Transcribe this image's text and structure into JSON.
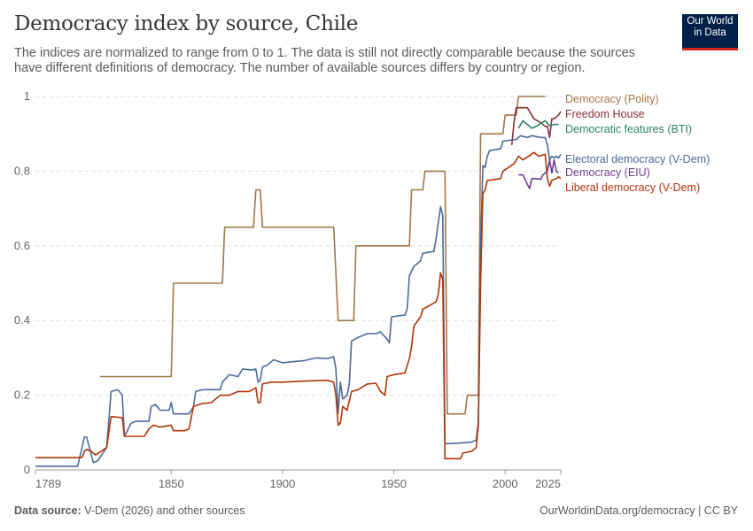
{
  "header": {
    "title": "Democracy index by source, Chile",
    "subtitle": "The indices are normalized to range from 0 to 1. The data is still not directly comparable because the sources have different definitions of democracy. The number of available sources differs by country or region.",
    "logo_line1": "Our World",
    "logo_line2": "in Data"
  },
  "footer": {
    "source_label": "Data source:",
    "source_text": "V-Dem (2026) and other sources",
    "url": "OurWorldinData.org/democracy | CC BY"
  },
  "chart_data": {
    "type": "line",
    "title": "Democracy index by source, Chile",
    "xlabel": "",
    "ylabel": "",
    "xlim": [
      1789,
      2025
    ],
    "ylim": [
      0,
      1
    ],
    "x_ticks": [
      "1789",
      "1850",
      "1900",
      "1950",
      "2000",
      "2025"
    ],
    "y_ticks": [
      "0",
      "0.2",
      "0.4",
      "0.6",
      "0.8",
      "1"
    ],
    "grid": "horizontal dashed",
    "legend": "right, inline labels",
    "series": [
      {
        "name": "Democracy (Polity)",
        "color": "#a2774b",
        "step": true,
        "points": [
          [
            1818,
            0.25
          ],
          [
            1850,
            0.25
          ],
          [
            1851,
            0.5
          ],
          [
            1873,
            0.5
          ],
          [
            1874,
            0.65
          ],
          [
            1887,
            0.65
          ],
          [
            1888,
            0.75
          ],
          [
            1890,
            0.75
          ],
          [
            1891,
            0.65
          ],
          [
            1923,
            0.65
          ],
          [
            1925,
            0.4
          ],
          [
            1932,
            0.4
          ],
          [
            1933,
            0.6
          ],
          [
            1957,
            0.6
          ],
          [
            1958,
            0.75
          ],
          [
            1963,
            0.75
          ],
          [
            1964,
            0.8
          ],
          [
            1973,
            0.8
          ],
          [
            1974,
            0.15
          ],
          [
            1982,
            0.15
          ],
          [
            1983,
            0.2
          ],
          [
            1988,
            0.2
          ],
          [
            1989,
            0.9
          ],
          [
            1999,
            0.9
          ],
          [
            2000,
            0.95
          ],
          [
            2005,
            0.95
          ],
          [
            2006,
            1
          ],
          [
            2018,
            1
          ]
        ]
      },
      {
        "name": "Freedom House",
        "color": "#883039",
        "points": [
          [
            2003,
            0.87
          ],
          [
            2004,
            0.93
          ],
          [
            2005,
            0.97
          ],
          [
            2010,
            0.97
          ],
          [
            2013,
            0.94
          ],
          [
            2016,
            0.93
          ],
          [
            2018,
            0.92
          ],
          [
            2019,
            0.92
          ],
          [
            2020,
            0.89
          ],
          [
            2021,
            0.94
          ],
          [
            2022,
            0.94
          ],
          [
            2024,
            0.95
          ],
          [
            2025,
            0.96
          ]
        ]
      },
      {
        "name": "Democratic features (BTI)",
        "color": "#2c8465",
        "points": [
          [
            2006,
            0.915
          ],
          [
            2008,
            0.935
          ],
          [
            2010,
            0.925
          ],
          [
            2012,
            0.915
          ],
          [
            2014,
            0.92
          ],
          [
            2016,
            0.928
          ],
          [
            2018,
            0.935
          ],
          [
            2020,
            0.922
          ],
          [
            2022,
            0.925
          ],
          [
            2024,
            0.925
          ]
        ]
      },
      {
        "name": "Electoral democracy (V-Dem)",
        "color": "#4c6a9c",
        "points": [
          [
            1789,
            0.01
          ],
          [
            1808,
            0.01
          ],
          [
            1811,
            0.088
          ],
          [
            1812,
            0.088
          ],
          [
            1815,
            0.02
          ],
          [
            1817,
            0.025
          ],
          [
            1821,
            0.06
          ],
          [
            1823,
            0.21
          ],
          [
            1826,
            0.215
          ],
          [
            1828,
            0.2
          ],
          [
            1829,
            0.09
          ],
          [
            1832,
            0.125
          ],
          [
            1834,
            0.13
          ],
          [
            1840,
            0.13
          ],
          [
            1841,
            0.17
          ],
          [
            1843,
            0.175
          ],
          [
            1845,
            0.16
          ],
          [
            1849,
            0.16
          ],
          [
            1850,
            0.18
          ],
          [
            1851,
            0.15
          ],
          [
            1858,
            0.15
          ],
          [
            1860,
            0.17
          ],
          [
            1861,
            0.21
          ],
          [
            1864,
            0.215
          ],
          [
            1872,
            0.215
          ],
          [
            1873,
            0.235
          ],
          [
            1876,
            0.255
          ],
          [
            1880,
            0.25
          ],
          [
            1882,
            0.27
          ],
          [
            1886,
            0.268
          ],
          [
            1888,
            0.27
          ],
          [
            1889,
            0.235
          ],
          [
            1890,
            0.24
          ],
          [
            1891,
            0.275
          ],
          [
            1893,
            0.28
          ],
          [
            1896,
            0.295
          ],
          [
            1900,
            0.287
          ],
          [
            1905,
            0.29
          ],
          [
            1910,
            0.293
          ],
          [
            1915,
            0.3
          ],
          [
            1920,
            0.298
          ],
          [
            1923,
            0.303
          ],
          [
            1924,
            0.27
          ],
          [
            1925,
            0.152
          ],
          [
            1926,
            0.235
          ],
          [
            1927,
            0.19
          ],
          [
            1929,
            0.2
          ],
          [
            1930,
            0.23
          ],
          [
            1931,
            0.345
          ],
          [
            1934,
            0.355
          ],
          [
            1938,
            0.365
          ],
          [
            1942,
            0.365
          ],
          [
            1944,
            0.37
          ],
          [
            1947,
            0.35
          ],
          [
            1948,
            0.34
          ],
          [
            1949,
            0.41
          ],
          [
            1955,
            0.415
          ],
          [
            1956,
            0.43
          ],
          [
            1957,
            0.52
          ],
          [
            1959,
            0.545
          ],
          [
            1962,
            0.56
          ],
          [
            1963,
            0.58
          ],
          [
            1968,
            0.585
          ],
          [
            1969,
            0.62
          ],
          [
            1971,
            0.705
          ],
          [
            1972,
            0.68
          ],
          [
            1973,
            0.07
          ],
          [
            1980,
            0.072
          ],
          [
            1985,
            0.075
          ],
          [
            1987,
            0.08
          ],
          [
            1988,
            0.13
          ],
          [
            1989,
            0.6
          ],
          [
            1990,
            0.815
          ],
          [
            1991,
            0.81
          ],
          [
            1992,
            0.84
          ],
          [
            1993,
            0.855
          ],
          [
            1998,
            0.86
          ],
          [
            1999,
            0.88
          ],
          [
            2005,
            0.885
          ],
          [
            2007,
            0.895
          ],
          [
            2010,
            0.89
          ],
          [
            2012,
            0.895
          ],
          [
            2016,
            0.89
          ],
          [
            2018,
            0.89
          ],
          [
            2019,
            0.87
          ],
          [
            2020,
            0.83
          ],
          [
            2021,
            0.84
          ],
          [
            2022,
            0.835
          ],
          [
            2023,
            0.84
          ],
          [
            2024,
            0.835
          ],
          [
            2025,
            0.845
          ]
        ]
      },
      {
        "name": "Democracy (EIU)",
        "color": "#6d3e91",
        "points": [
          [
            2006,
            0.79
          ],
          [
            2008,
            0.79
          ],
          [
            2010,
            0.765
          ],
          [
            2011,
            0.753
          ],
          [
            2012,
            0.78
          ],
          [
            2014,
            0.78
          ],
          [
            2016,
            0.778
          ],
          [
            2017,
            0.79
          ],
          [
            2019,
            0.8
          ],
          [
            2020,
            0.83
          ],
          [
            2021,
            0.795
          ],
          [
            2022,
            0.83
          ],
          [
            2023,
            0.8
          ],
          [
            2024,
            0.795
          ]
        ]
      },
      {
        "name": "Liberal democracy (V-Dem)",
        "color": "#b13507",
        "points": [
          [
            1789,
            0.033
          ],
          [
            1808,
            0.033
          ],
          [
            1810,
            0.034
          ],
          [
            1811,
            0.05
          ],
          [
            1812,
            0.055
          ],
          [
            1814,
            0.05
          ],
          [
            1816,
            0.04
          ],
          [
            1821,
            0.06
          ],
          [
            1823,
            0.143
          ],
          [
            1828,
            0.14
          ],
          [
            1829,
            0.09
          ],
          [
            1835,
            0.09
          ],
          [
            1838,
            0.09
          ],
          [
            1840,
            0.11
          ],
          [
            1842,
            0.12
          ],
          [
            1845,
            0.115
          ],
          [
            1850,
            0.12
          ],
          [
            1851,
            0.105
          ],
          [
            1856,
            0.105
          ],
          [
            1858,
            0.11
          ],
          [
            1860,
            0.17
          ],
          [
            1864,
            0.178
          ],
          [
            1868,
            0.18
          ],
          [
            1870,
            0.19
          ],
          [
            1872,
            0.2
          ],
          [
            1876,
            0.2
          ],
          [
            1880,
            0.21
          ],
          [
            1885,
            0.21
          ],
          [
            1888,
            0.22
          ],
          [
            1889,
            0.18
          ],
          [
            1890,
            0.18
          ],
          [
            1891,
            0.23
          ],
          [
            1895,
            0.235
          ],
          [
            1900,
            0.235
          ],
          [
            1910,
            0.238
          ],
          [
            1920,
            0.24
          ],
          [
            1923,
            0.235
          ],
          [
            1924,
            0.2
          ],
          [
            1925,
            0.12
          ],
          [
            1926,
            0.125
          ],
          [
            1927,
            0.17
          ],
          [
            1929,
            0.16
          ],
          [
            1931,
            0.21
          ],
          [
            1934,
            0.215
          ],
          [
            1938,
            0.23
          ],
          [
            1942,
            0.232
          ],
          [
            1944,
            0.21
          ],
          [
            1946,
            0.2
          ],
          [
            1947,
            0.25
          ],
          [
            1950,
            0.255
          ],
          [
            1955,
            0.26
          ],
          [
            1957,
            0.298
          ],
          [
            1958,
            0.33
          ],
          [
            1959,
            0.385
          ],
          [
            1962,
            0.41
          ],
          [
            1963,
            0.43
          ],
          [
            1969,
            0.45
          ],
          [
            1970,
            0.47
          ],
          [
            1971,
            0.528
          ],
          [
            1972,
            0.51
          ],
          [
            1973,
            0.03
          ],
          [
            1980,
            0.03
          ],
          [
            1981,
            0.045
          ],
          [
            1985,
            0.05
          ],
          [
            1987,
            0.06
          ],
          [
            1988,
            0.12
          ],
          [
            1989,
            0.5
          ],
          [
            1990,
            0.74
          ],
          [
            1991,
            0.75
          ],
          [
            1992,
            0.775
          ],
          [
            1998,
            0.78
          ],
          [
            1999,
            0.8
          ],
          [
            2004,
            0.82
          ],
          [
            2006,
            0.84
          ],
          [
            2008,
            0.83
          ],
          [
            2013,
            0.85
          ],
          [
            2015,
            0.84
          ],
          [
            2018,
            0.845
          ],
          [
            2019,
            0.78
          ],
          [
            2020,
            0.76
          ],
          [
            2021,
            0.775
          ],
          [
            2023,
            0.78
          ],
          [
            2024,
            0.785
          ],
          [
            2025,
            0.78
          ]
        ]
      }
    ]
  }
}
